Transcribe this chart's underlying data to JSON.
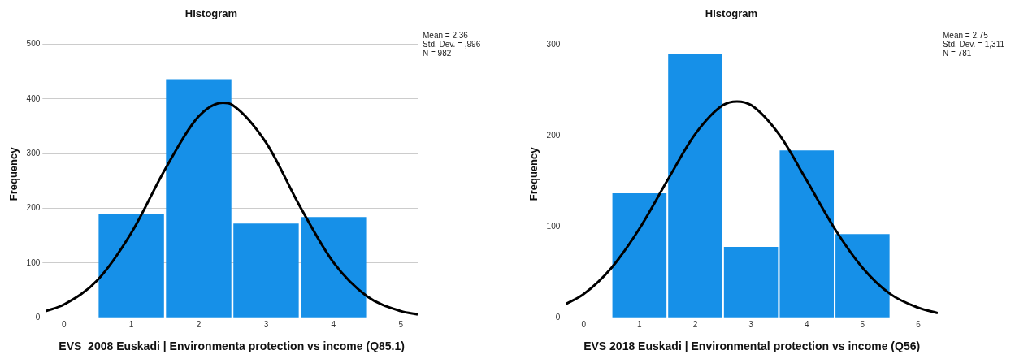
{
  "chart_data": [
    {
      "type": "histogram",
      "title": "Histogram",
      "xlabel": "EVS  2008 Euskadi | Environmenta protection vs income (Q85.1)",
      "ylabel": "Frequency",
      "series": [
        {
          "color": "#1690e8",
          "bins": [
            0.5,
            1.5,
            2.5,
            3.5,
            4.5
          ],
          "values": [
            190,
            436,
            172,
            184
          ]
        },
        {
          "type": "line",
          "color": "#000000",
          "x": [
            -0.27,
            0,
            0.5,
            1,
            1.5,
            2,
            2.36,
            2.5,
            3,
            3.5,
            4,
            4.5,
            5,
            5.25
          ],
          "values": [
            12,
            24,
            69,
            155,
            271,
            368,
            393,
            389,
            320,
            204,
            101,
            39,
            12,
            6
          ]
        }
      ],
      "xlim": [
        -0.27,
        5.25
      ],
      "xticks": [
        0,
        1,
        2,
        3,
        4,
        5
      ],
      "ylim": [
        0,
        525
      ],
      "yticks": [
        0,
        100,
        200,
        300,
        400,
        500
      ],
      "grid": "y",
      "legend": false,
      "marker": "none",
      "annotations": [
        "Mean = 2,36",
        "Std. Dev. = ,996",
        "N = 982"
      ]
    },
    {
      "type": "histogram",
      "title": "Histogram",
      "xlabel": "EVS 2018 Euskadi | Environmental protection vs income (Q56)",
      "ylabel": "Frequency",
      "series": [
        {
          "color": "#1690e8",
          "bins": [
            0.5,
            1.5,
            2.5,
            3.5,
            4.5,
            5.5
          ],
          "values": [
            137,
            290,
            78,
            184,
            92
          ]
        },
        {
          "type": "line",
          "color": "#000000",
          "x": [
            -0.32,
            0,
            0.5,
            1,
            1.5,
            2,
            2.5,
            2.75,
            3,
            3.5,
            4,
            4.5,
            5,
            5.5,
            6,
            6.35
          ],
          "values": [
            15,
            26,
            55,
            98,
            151,
            202,
            234,
            238,
            234,
            202,
            151,
            98,
            55,
            26,
            11,
            5
          ]
        }
      ],
      "xlim": [
        -0.32,
        6.35
      ],
      "xticks": [
        0,
        1,
        2,
        3,
        4,
        5,
        6
      ],
      "ylim": [
        0,
        316
      ],
      "yticks": [
        0,
        100,
        200,
        300
      ],
      "grid": "y",
      "legend": false,
      "marker": "none",
      "annotations": [
        "Mean = 2,75",
        "Std. Dev. = 1,311",
        "N = 781"
      ]
    }
  ]
}
